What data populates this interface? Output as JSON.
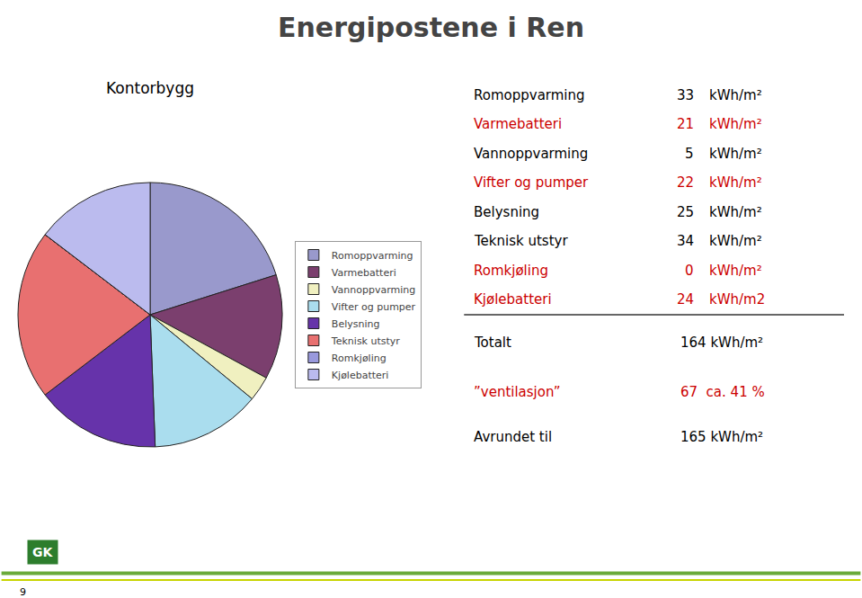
{
  "chart_data": {
    "type": "pie",
    "title": "Energipostene i Ren",
    "subtitle": "Kontorbygg",
    "categories": [
      "Romoppvarming",
      "Varmebatteri",
      "Vannoppvarming",
      "Vifter og pumper",
      "Belysning",
      "Teknisk utstyr",
      "Romkjøling",
      "Kjølebatteri"
    ],
    "values": [
      33,
      21,
      5,
      22,
      25,
      34,
      0,
      24
    ],
    "colors": [
      "#9999cc",
      "#7b3f6e",
      "#f0f0c0",
      "#aaddee",
      "#6633aa",
      "#e87070",
      "#9999dd",
      "#bbbbee"
    ],
    "data_labels": false,
    "legend": "right",
    "table_rows": [
      {
        "texts": [
          "Romoppvarming",
          "33",
          "kWh/m²"
        ],
        "color": "#000000"
      },
      {
        "texts": [
          "Varmebatteri",
          "21",
          "kWh/m²"
        ],
        "color": "#cc0000"
      },
      {
        "texts": [
          "Vannoppvarming",
          "5",
          "kWh/m²"
        ],
        "color": "#000000"
      },
      {
        "texts": [
          "Vifter og pumper",
          "22",
          "kWh/m²"
        ],
        "color": "#cc0000"
      },
      {
        "texts": [
          "Belysning",
          "25",
          "kWh/m²"
        ],
        "color": "#000000"
      },
      {
        "texts": [
          "Teknisk utstyr",
          "34",
          "kWh/m²"
        ],
        "color": "#000000"
      },
      {
        "texts": [
          "Romkjøling",
          "0",
          "kWh/m²"
        ],
        "color": "#cc0000"
      },
      {
        "texts": [
          "Kjølebatteri",
          "24",
          "kWh/m2"
        ],
        "color": "#cc0000"
      }
    ],
    "summary_rows": [
      {
        "texts": [
          "Totalt",
          "164 kWh/m²"
        ],
        "color": "#000000"
      },
      {
        "texts": [
          "”ventilasjon”",
          "67  ca. 41 %"
        ],
        "color": "#cc0000"
      },
      {
        "texts": [
          "Avrundet til",
          "165 kWh/m²"
        ],
        "color": "#000000"
      }
    ],
    "annotations": [
      {
        "text": "9"
      },
      {
        "text": "GK",
        "color": "#2d7d2d"
      }
    ]
  }
}
